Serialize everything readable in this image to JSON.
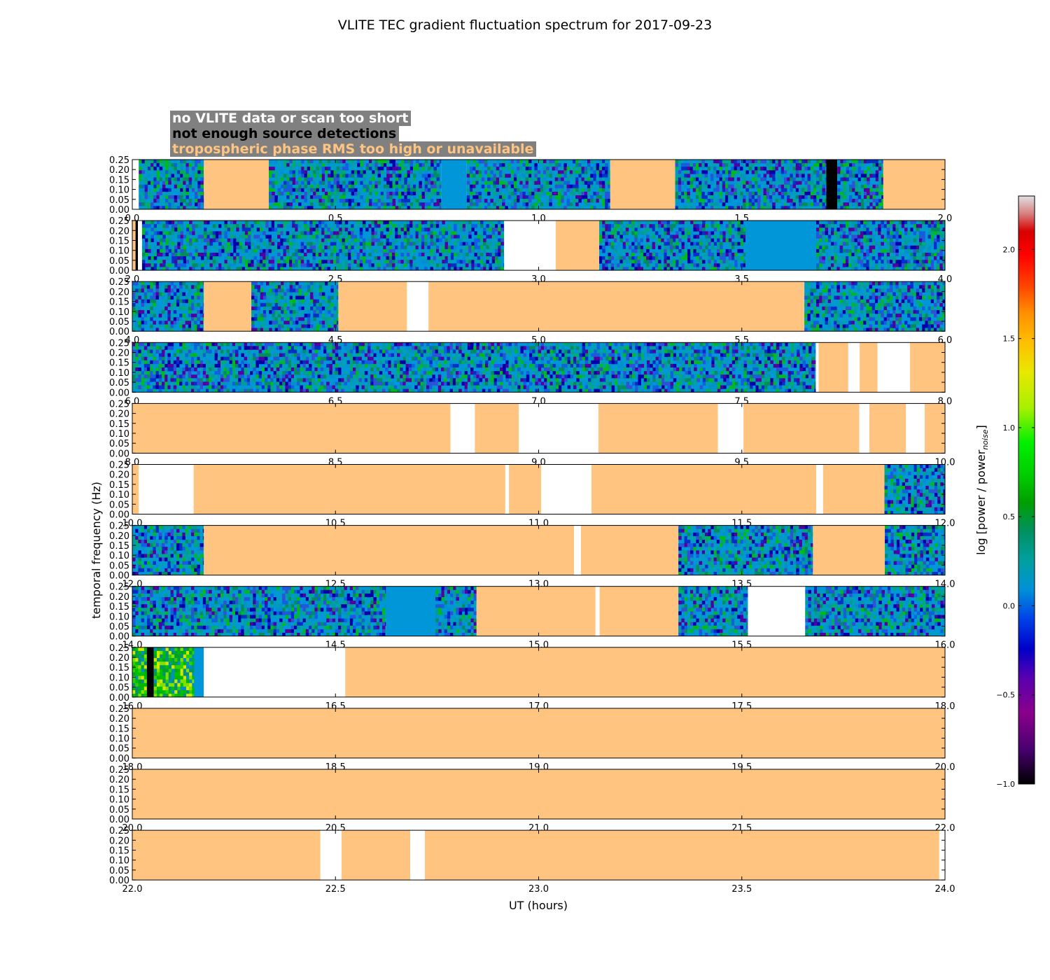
{
  "chart_data": {
    "type": "heatmap",
    "title": "VLITE TEC gradient fluctuation spectrum for 2017-09-23",
    "xlabel": "UT (hours)",
    "ylabel": "temporal frequency (Hz)",
    "ylim": [
      0,
      0.25
    ],
    "yticks": [
      "0.00",
      "0.05",
      "0.10",
      "0.15",
      "0.20",
      "0.25"
    ],
    "colorbar": {
      "label_main": "log [power / power",
      "label_sub": "noise",
      "label_end": "]",
      "range": [
        -1.0,
        2.3
      ],
      "ticks": [
        "−1.0",
        "−0.5",
        "0.0",
        "0.5",
        "1.0",
        "1.5",
        "2.0"
      ],
      "tick_values": [
        -1.0,
        -0.5,
        0.0,
        0.5,
        1.0,
        1.5,
        2.0
      ]
    },
    "legend": [
      {
        "text": "no VLITE data or scan too short",
        "category": "no_data",
        "color": "#ffffff"
      },
      {
        "text": "not enough source detections",
        "category": "no_detections",
        "color": "#000000"
      },
      {
        "text": "tropospheric phase RMS too high or unavailable",
        "category": "trop_rms",
        "color": "#ffc580"
      }
    ],
    "category_colors": {
      "no_data": "#ffffff",
      "no_detections": "#000000",
      "trop_rms": "#ffc580"
    },
    "panels": [
      {
        "xlim": [
          0,
          2
        ],
        "xticks": [
          "0.0",
          "0.5",
          "1.0",
          "1.5",
          "2.0"
        ],
        "segments": [
          {
            "start": 0.0,
            "end": 0.016,
            "kind": "no_data"
          },
          {
            "start": 0.016,
            "end": 0.176,
            "kind": "data"
          },
          {
            "start": 0.176,
            "end": 0.336,
            "kind": "trop_rms"
          },
          {
            "start": 0.336,
            "end": 0.423,
            "kind": "data"
          },
          {
            "start": 0.423,
            "end": 0.76,
            "kind": "data"
          },
          {
            "start": 0.76,
            "end": 0.823,
            "kind": "data_flat"
          },
          {
            "start": 0.823,
            "end": 1.176,
            "kind": "data"
          },
          {
            "start": 1.176,
            "end": 1.336,
            "kind": "trop_rms"
          },
          {
            "start": 1.336,
            "end": 1.708,
            "kind": "data"
          },
          {
            "start": 1.708,
            "end": 1.735,
            "kind": "no_detections"
          },
          {
            "start": 1.735,
            "end": 1.848,
            "kind": "data"
          },
          {
            "start": 1.848,
            "end": 2.0,
            "kind": "trop_rms"
          }
        ]
      },
      {
        "xlim": [
          2,
          4
        ],
        "xticks": [
          "2.0",
          "2.5",
          "3.0",
          "3.5",
          "4.0"
        ],
        "segments": [
          {
            "start": 2.0,
            "end": 2.008,
            "kind": "trop_rms"
          },
          {
            "start": 2.008,
            "end": 2.014,
            "kind": "no_detections"
          },
          {
            "start": 2.014,
            "end": 2.024,
            "kind": "no_data"
          },
          {
            "start": 2.024,
            "end": 2.915,
            "kind": "data"
          },
          {
            "start": 2.915,
            "end": 3.042,
            "kind": "no_data"
          },
          {
            "start": 3.042,
            "end": 3.149,
            "kind": "trop_rms"
          },
          {
            "start": 3.149,
            "end": 3.509,
            "kind": "data"
          },
          {
            "start": 3.509,
            "end": 3.683,
            "kind": "data_flat"
          },
          {
            "start": 3.683,
            "end": 4.0,
            "kind": "data"
          }
        ]
      },
      {
        "xlim": [
          4,
          6
        ],
        "xticks": [
          "4.0",
          "4.5",
          "5.0",
          "5.5",
          "6.0"
        ],
        "segments": [
          {
            "start": 4.0,
            "end": 4.176,
            "kind": "data"
          },
          {
            "start": 4.176,
            "end": 4.293,
            "kind": "trop_rms"
          },
          {
            "start": 4.293,
            "end": 4.507,
            "kind": "data"
          },
          {
            "start": 4.507,
            "end": 4.676,
            "kind": "trop_rms"
          },
          {
            "start": 4.676,
            "end": 4.729,
            "kind": "no_data"
          },
          {
            "start": 4.729,
            "end": 5.654,
            "kind": "trop_rms"
          },
          {
            "start": 5.654,
            "end": 6.0,
            "kind": "data"
          }
        ]
      },
      {
        "xlim": [
          6,
          8
        ],
        "xticks": [
          "6.0",
          "6.5",
          "7.0",
          "7.5",
          "8.0"
        ],
        "segments": [
          {
            "start": 6.0,
            "end": 7.682,
            "kind": "data"
          },
          {
            "start": 7.682,
            "end": 7.689,
            "kind": "no_data"
          },
          {
            "start": 7.689,
            "end": 7.762,
            "kind": "trop_rms"
          },
          {
            "start": 7.762,
            "end": 7.79,
            "kind": "no_data"
          },
          {
            "start": 7.79,
            "end": 7.834,
            "kind": "trop_rms"
          },
          {
            "start": 7.834,
            "end": 7.914,
            "kind": "no_data"
          },
          {
            "start": 7.914,
            "end": 8.0,
            "kind": "trop_rms"
          }
        ]
      },
      {
        "xlim": [
          8,
          10
        ],
        "xticks": [
          "8.0",
          "8.5",
          "9.0",
          "9.5",
          "10.0"
        ],
        "segments": [
          {
            "start": 8.0,
            "end": 8.783,
            "kind": "trop_rms"
          },
          {
            "start": 8.783,
            "end": 8.843,
            "kind": "no_data"
          },
          {
            "start": 8.843,
            "end": 8.951,
            "kind": "trop_rms"
          },
          {
            "start": 8.951,
            "end": 9.147,
            "kind": "no_data"
          },
          {
            "start": 9.147,
            "end": 9.441,
            "kind": "trop_rms"
          },
          {
            "start": 9.441,
            "end": 9.504,
            "kind": "no_data"
          },
          {
            "start": 9.504,
            "end": 9.789,
            "kind": "trop_rms"
          },
          {
            "start": 9.789,
            "end": 9.814,
            "kind": "no_data"
          },
          {
            "start": 9.814,
            "end": 9.904,
            "kind": "trop_rms"
          },
          {
            "start": 9.904,
            "end": 9.95,
            "kind": "no_data"
          },
          {
            "start": 9.95,
            "end": 10.0,
            "kind": "trop_rms"
          }
        ]
      },
      {
        "xlim": [
          10,
          12
        ],
        "xticks": [
          "10.0",
          "10.5",
          "11.0",
          "11.5",
          "12.0"
        ],
        "segments": [
          {
            "start": 10.0,
            "end": 10.016,
            "kind": "trop_rms"
          },
          {
            "start": 10.016,
            "end": 10.151,
            "kind": "no_data"
          },
          {
            "start": 10.151,
            "end": 10.918,
            "kind": "trop_rms"
          },
          {
            "start": 10.918,
            "end": 10.927,
            "kind": "no_data"
          },
          {
            "start": 10.927,
            "end": 11.006,
            "kind": "trop_rms"
          },
          {
            "start": 11.006,
            "end": 11.13,
            "kind": "no_data"
          },
          {
            "start": 11.13,
            "end": 11.683,
            "kind": "trop_rms"
          },
          {
            "start": 11.683,
            "end": 11.7,
            "kind": "no_data"
          },
          {
            "start": 11.7,
            "end": 11.851,
            "kind": "trop_rms"
          },
          {
            "start": 11.851,
            "end": 12.0,
            "kind": "data"
          }
        ]
      },
      {
        "xlim": [
          12,
          14
        ],
        "xticks": [
          "12.0",
          "12.5",
          "13.0",
          "13.5",
          "14.0"
        ],
        "segments": [
          {
            "start": 12.0,
            "end": 12.176,
            "kind": "data"
          },
          {
            "start": 12.176,
            "end": 13.087,
            "kind": "trop_rms"
          },
          {
            "start": 13.087,
            "end": 13.104,
            "kind": "no_data"
          },
          {
            "start": 13.104,
            "end": 13.344,
            "kind": "trop_rms"
          },
          {
            "start": 13.344,
            "end": 13.675,
            "kind": "data"
          },
          {
            "start": 13.675,
            "end": 13.852,
            "kind": "trop_rms"
          },
          {
            "start": 13.852,
            "end": 14.0,
            "kind": "data"
          }
        ]
      },
      {
        "xlim": [
          14,
          16
        ],
        "xticks": [
          "14.0",
          "14.5",
          "15.0",
          "15.5",
          "16.0"
        ],
        "segments": [
          {
            "start": 14.0,
            "end": 14.624,
            "kind": "data"
          },
          {
            "start": 14.624,
            "end": 14.746,
            "kind": "data_flat"
          },
          {
            "start": 14.746,
            "end": 14.847,
            "kind": "data"
          },
          {
            "start": 14.847,
            "end": 15.14,
            "kind": "trop_rms"
          },
          {
            "start": 15.14,
            "end": 15.15,
            "kind": "no_data"
          },
          {
            "start": 15.15,
            "end": 15.344,
            "kind": "trop_rms"
          },
          {
            "start": 15.344,
            "end": 15.515,
            "kind": "data"
          },
          {
            "start": 15.515,
            "end": 15.656,
            "kind": "no_data"
          },
          {
            "start": 15.656,
            "end": 16.0,
            "kind": "data"
          }
        ]
      },
      {
        "xlim": [
          16,
          18
        ],
        "xticks": [
          "16.0",
          "16.5",
          "17.0",
          "17.5",
          "18.0"
        ],
        "segments": [
          {
            "start": 16.0,
            "end": 16.036,
            "kind": "data_bright"
          },
          {
            "start": 16.036,
            "end": 16.053,
            "kind": "no_detections"
          },
          {
            "start": 16.053,
            "end": 16.152,
            "kind": "data_bright"
          },
          {
            "start": 16.152,
            "end": 16.176,
            "kind": "data_flat"
          },
          {
            "start": 16.176,
            "end": 16.524,
            "kind": "no_data"
          },
          {
            "start": 16.524,
            "end": 18.0,
            "kind": "trop_rms"
          }
        ]
      },
      {
        "xlim": [
          18,
          20
        ],
        "xticks": [
          "18.0",
          "18.5",
          "19.0",
          "19.5",
          "20.0"
        ],
        "segments": [
          {
            "start": 18.0,
            "end": 20.0,
            "kind": "trop_rms"
          }
        ]
      },
      {
        "xlim": [
          20,
          22
        ],
        "xticks": [
          "20.0",
          "20.5",
          "21.0",
          "21.5",
          "22.0"
        ],
        "segments": [
          {
            "start": 20.0,
            "end": 22.0,
            "kind": "trop_rms"
          }
        ]
      },
      {
        "xlim": [
          22,
          24
        ],
        "xticks": [
          "22.0",
          "22.5",
          "23.0",
          "23.5",
          "24.0"
        ],
        "segments": [
          {
            "start": 22.0,
            "end": 22.463,
            "kind": "trop_rms"
          },
          {
            "start": 22.463,
            "end": 22.515,
            "kind": "no_data"
          },
          {
            "start": 22.515,
            "end": 22.684,
            "kind": "trop_rms"
          },
          {
            "start": 22.684,
            "end": 22.72,
            "kind": "no_data"
          },
          {
            "start": 22.72,
            "end": 23.986,
            "kind": "trop_rms"
          },
          {
            "start": 23.986,
            "end": 24.0,
            "kind": "no_data"
          }
        ]
      }
    ]
  }
}
